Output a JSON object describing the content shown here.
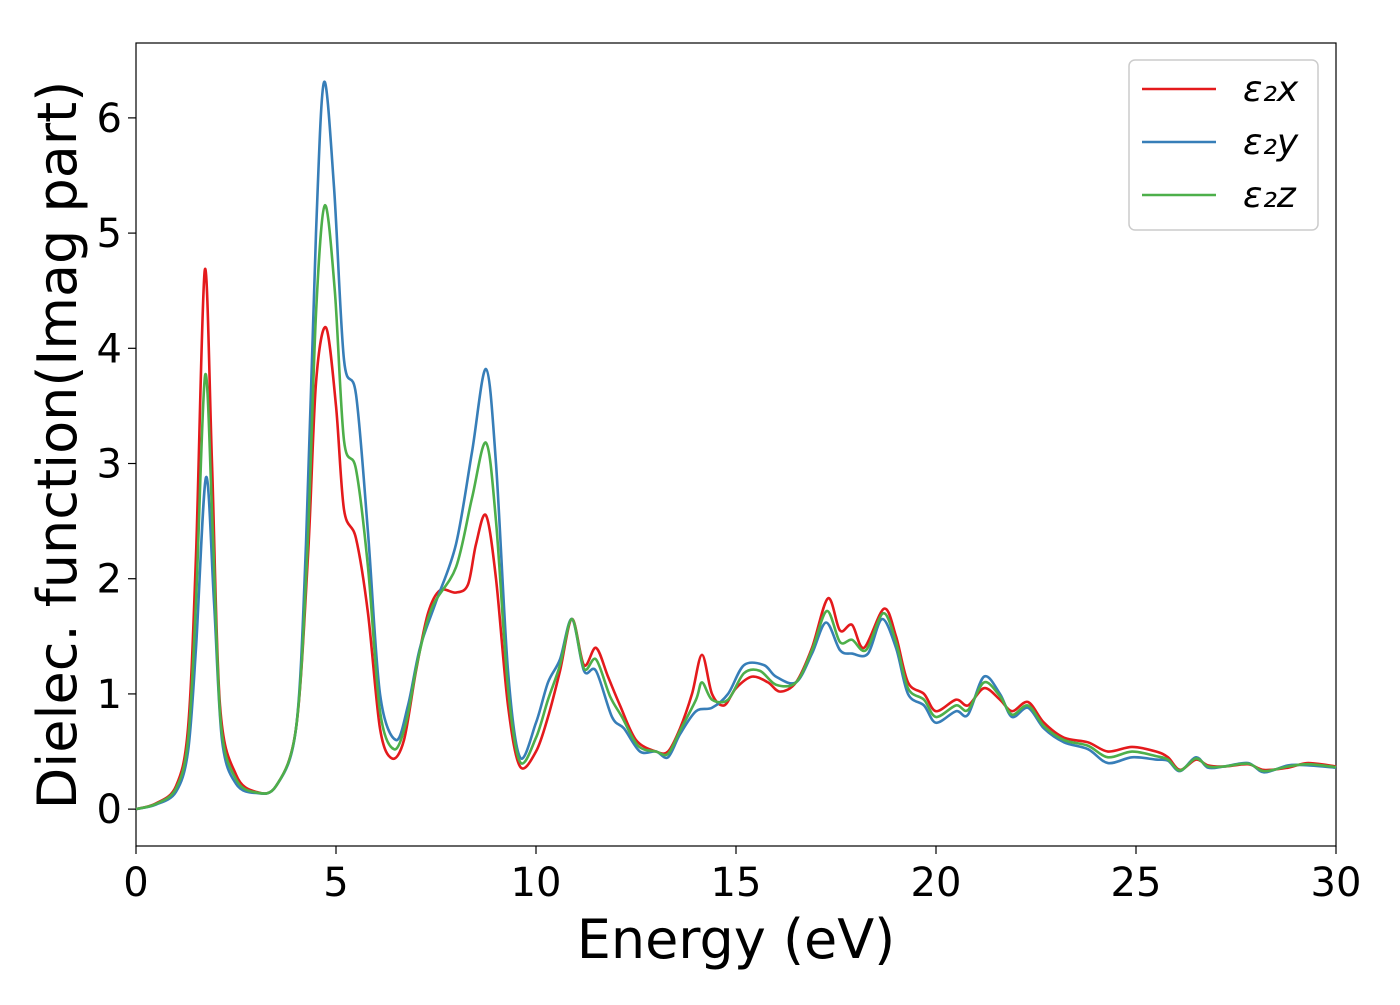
{
  "chart_data": {
    "type": "line",
    "title": "",
    "xlabel": "Energy (eV)",
    "ylabel": "Dielec. function(Imag part)",
    "xlim": [
      0,
      30
    ],
    "ylim": [
      -0.32,
      6.65
    ],
    "xticks": [
      0,
      5,
      10,
      15,
      20,
      25,
      30
    ],
    "xtick_labels": [
      "0",
      "5",
      "10",
      "15",
      "20",
      "25",
      "30"
    ],
    "yticks": [
      0,
      1,
      2,
      3,
      4,
      5,
      6
    ],
    "ytick_labels": [
      "0",
      "1",
      "2",
      "3",
      "4",
      "5",
      "6"
    ],
    "grid": false,
    "legend_position": "top-right",
    "series": [
      {
        "name": "ε₂x",
        "color": "#e41a1c",
        "points": [
          [
            0,
            0
          ],
          [
            0.5,
            0.05
          ],
          [
            1.0,
            0.2
          ],
          [
            1.3,
            0.7
          ],
          [
            1.5,
            2.2
          ],
          [
            1.72,
            4.68
          ],
          [
            1.9,
            3.0
          ],
          [
            2.1,
            0.9
          ],
          [
            2.5,
            0.3
          ],
          [
            3.0,
            0.15
          ],
          [
            3.5,
            0.2
          ],
          [
            4.0,
            0.7
          ],
          [
            4.3,
            2.2
          ],
          [
            4.5,
            3.7
          ],
          [
            4.75,
            4.18
          ],
          [
            5.0,
            3.5
          ],
          [
            5.2,
            2.6
          ],
          [
            5.5,
            2.35
          ],
          [
            5.8,
            1.7
          ],
          [
            6.1,
            0.7
          ],
          [
            6.4,
            0.44
          ],
          [
            6.7,
            0.6
          ],
          [
            7.0,
            1.2
          ],
          [
            7.3,
            1.7
          ],
          [
            7.6,
            1.9
          ],
          [
            8.0,
            1.88
          ],
          [
            8.3,
            1.95
          ],
          [
            8.5,
            2.3
          ],
          [
            8.75,
            2.55
          ],
          [
            9.0,
            2.0
          ],
          [
            9.3,
            0.9
          ],
          [
            9.6,
            0.37
          ],
          [
            10.0,
            0.5
          ],
          [
            10.3,
            0.8
          ],
          [
            10.6,
            1.2
          ],
          [
            10.9,
            1.65
          ],
          [
            11.2,
            1.25
          ],
          [
            11.5,
            1.4
          ],
          [
            11.8,
            1.15
          ],
          [
            12.1,
            0.9
          ],
          [
            12.5,
            0.6
          ],
          [
            13.0,
            0.5
          ],
          [
            13.3,
            0.5
          ],
          [
            13.6,
            0.7
          ],
          [
            13.9,
            1.0
          ],
          [
            14.15,
            1.34
          ],
          [
            14.4,
            1.0
          ],
          [
            14.7,
            0.9
          ],
          [
            15.0,
            1.05
          ],
          [
            15.4,
            1.15
          ],
          [
            15.8,
            1.1
          ],
          [
            16.1,
            1.02
          ],
          [
            16.5,
            1.1
          ],
          [
            16.9,
            1.4
          ],
          [
            17.3,
            1.83
          ],
          [
            17.6,
            1.55
          ],
          [
            17.9,
            1.6
          ],
          [
            18.2,
            1.4
          ],
          [
            18.7,
            1.74
          ],
          [
            19.0,
            1.5
          ],
          [
            19.3,
            1.1
          ],
          [
            19.7,
            1.0
          ],
          [
            20.0,
            0.85
          ],
          [
            20.5,
            0.95
          ],
          [
            20.8,
            0.9
          ],
          [
            21.2,
            1.05
          ],
          [
            21.6,
            0.95
          ],
          [
            21.9,
            0.85
          ],
          [
            22.3,
            0.93
          ],
          [
            22.7,
            0.75
          ],
          [
            23.2,
            0.62
          ],
          [
            23.8,
            0.58
          ],
          [
            24.3,
            0.5
          ],
          [
            24.9,
            0.54
          ],
          [
            25.5,
            0.5
          ],
          [
            25.8,
            0.45
          ],
          [
            26.1,
            0.34
          ],
          [
            26.5,
            0.43
          ],
          [
            26.8,
            0.38
          ],
          [
            27.2,
            0.37
          ],
          [
            27.8,
            0.39
          ],
          [
            28.2,
            0.34
          ],
          [
            28.8,
            0.36
          ],
          [
            29.3,
            0.4
          ],
          [
            30.0,
            0.37
          ]
        ]
      },
      {
        "name": "ε₂y",
        "color": "#377eb8",
        "points": [
          [
            0,
            0
          ],
          [
            0.5,
            0.04
          ],
          [
            1.0,
            0.15
          ],
          [
            1.3,
            0.5
          ],
          [
            1.5,
            1.4
          ],
          [
            1.75,
            2.88
          ],
          [
            1.95,
            1.8
          ],
          [
            2.15,
            0.6
          ],
          [
            2.5,
            0.22
          ],
          [
            3.0,
            0.14
          ],
          [
            3.5,
            0.2
          ],
          [
            4.0,
            0.7
          ],
          [
            4.25,
            2.3
          ],
          [
            4.5,
            5.0
          ],
          [
            4.7,
            6.31
          ],
          [
            4.95,
            5.4
          ],
          [
            5.2,
            3.9
          ],
          [
            5.5,
            3.6
          ],
          [
            5.8,
            2.4
          ],
          [
            6.1,
            1.0
          ],
          [
            6.5,
            0.6
          ],
          [
            6.8,
            0.9
          ],
          [
            7.1,
            1.4
          ],
          [
            7.5,
            1.8
          ],
          [
            8.0,
            2.3
          ],
          [
            8.4,
            3.1
          ],
          [
            8.75,
            3.82
          ],
          [
            9.0,
            3.0
          ],
          [
            9.3,
            1.2
          ],
          [
            9.6,
            0.45
          ],
          [
            10.0,
            0.75
          ],
          [
            10.3,
            1.1
          ],
          [
            10.6,
            1.3
          ],
          [
            10.9,
            1.65
          ],
          [
            11.2,
            1.2
          ],
          [
            11.5,
            1.2
          ],
          [
            11.9,
            0.8
          ],
          [
            12.2,
            0.7
          ],
          [
            12.6,
            0.5
          ],
          [
            13.0,
            0.5
          ],
          [
            13.3,
            0.45
          ],
          [
            13.6,
            0.65
          ],
          [
            14.0,
            0.85
          ],
          [
            14.4,
            0.88
          ],
          [
            14.8,
            1.0
          ],
          [
            15.2,
            1.25
          ],
          [
            15.7,
            1.25
          ],
          [
            16.0,
            1.15
          ],
          [
            16.5,
            1.1
          ],
          [
            16.9,
            1.35
          ],
          [
            17.25,
            1.62
          ],
          [
            17.6,
            1.38
          ],
          [
            17.9,
            1.35
          ],
          [
            18.3,
            1.35
          ],
          [
            18.65,
            1.65
          ],
          [
            19.0,
            1.4
          ],
          [
            19.3,
            1.0
          ],
          [
            19.7,
            0.9
          ],
          [
            20.0,
            0.75
          ],
          [
            20.5,
            0.85
          ],
          [
            20.8,
            0.82
          ],
          [
            21.2,
            1.15
          ],
          [
            21.6,
            1.0
          ],
          [
            21.9,
            0.8
          ],
          [
            22.3,
            0.88
          ],
          [
            22.7,
            0.7
          ],
          [
            23.2,
            0.58
          ],
          [
            23.8,
            0.52
          ],
          [
            24.3,
            0.4
          ],
          [
            24.9,
            0.45
          ],
          [
            25.5,
            0.43
          ],
          [
            25.8,
            0.42
          ],
          [
            26.1,
            0.33
          ],
          [
            26.5,
            0.45
          ],
          [
            26.8,
            0.36
          ],
          [
            27.2,
            0.37
          ],
          [
            27.8,
            0.4
          ],
          [
            28.2,
            0.32
          ],
          [
            28.8,
            0.38
          ],
          [
            29.3,
            0.38
          ],
          [
            30.0,
            0.36
          ]
        ]
      },
      {
        "name": "ε₂z",
        "color": "#4daf4a",
        "points": [
          [
            0,
            0
          ],
          [
            0.5,
            0.045
          ],
          [
            1.0,
            0.18
          ],
          [
            1.3,
            0.6
          ],
          [
            1.5,
            1.8
          ],
          [
            1.73,
            3.77
          ],
          [
            1.92,
            2.4
          ],
          [
            2.12,
            0.75
          ],
          [
            2.5,
            0.26
          ],
          [
            3.0,
            0.145
          ],
          [
            3.5,
            0.2
          ],
          [
            4.0,
            0.7
          ],
          [
            4.28,
            2.2
          ],
          [
            4.5,
            4.3
          ],
          [
            4.72,
            5.24
          ],
          [
            4.97,
            4.5
          ],
          [
            5.2,
            3.2
          ],
          [
            5.5,
            2.95
          ],
          [
            5.8,
            2.1
          ],
          [
            6.1,
            0.85
          ],
          [
            6.45,
            0.52
          ],
          [
            6.75,
            0.75
          ],
          [
            7.05,
            1.3
          ],
          [
            7.4,
            1.75
          ],
          [
            8.0,
            2.1
          ],
          [
            8.4,
            2.7
          ],
          [
            8.75,
            3.18
          ],
          [
            9.0,
            2.5
          ],
          [
            9.3,
            1.05
          ],
          [
            9.6,
            0.41
          ],
          [
            10.0,
            0.62
          ],
          [
            10.3,
            0.95
          ],
          [
            10.6,
            1.25
          ],
          [
            10.9,
            1.65
          ],
          [
            11.2,
            1.22
          ],
          [
            11.5,
            1.3
          ],
          [
            11.85,
            0.98
          ],
          [
            12.15,
            0.8
          ],
          [
            12.55,
            0.55
          ],
          [
            13.0,
            0.5
          ],
          [
            13.3,
            0.48
          ],
          [
            13.6,
            0.68
          ],
          [
            14.0,
            0.95
          ],
          [
            14.15,
            1.1
          ],
          [
            14.4,
            0.95
          ],
          [
            14.8,
            0.95
          ],
          [
            15.2,
            1.18
          ],
          [
            15.6,
            1.2
          ],
          [
            16.0,
            1.08
          ],
          [
            16.5,
            1.1
          ],
          [
            16.9,
            1.38
          ],
          [
            17.27,
            1.72
          ],
          [
            17.6,
            1.45
          ],
          [
            17.9,
            1.47
          ],
          [
            18.25,
            1.38
          ],
          [
            18.68,
            1.7
          ],
          [
            19.0,
            1.45
          ],
          [
            19.3,
            1.05
          ],
          [
            19.7,
            0.95
          ],
          [
            20.0,
            0.8
          ],
          [
            20.5,
            0.9
          ],
          [
            20.8,
            0.86
          ],
          [
            21.2,
            1.1
          ],
          [
            21.6,
            0.98
          ],
          [
            21.9,
            0.82
          ],
          [
            22.3,
            0.9
          ],
          [
            22.7,
            0.72
          ],
          [
            23.2,
            0.6
          ],
          [
            23.8,
            0.55
          ],
          [
            24.3,
            0.45
          ],
          [
            24.9,
            0.5
          ],
          [
            25.5,
            0.46
          ],
          [
            25.8,
            0.43
          ],
          [
            26.1,
            0.335
          ],
          [
            26.5,
            0.44
          ],
          [
            26.8,
            0.37
          ],
          [
            27.2,
            0.37
          ],
          [
            27.8,
            0.395
          ],
          [
            28.2,
            0.33
          ],
          [
            28.8,
            0.37
          ],
          [
            29.3,
            0.39
          ],
          [
            30.0,
            0.365
          ]
        ]
      }
    ]
  }
}
